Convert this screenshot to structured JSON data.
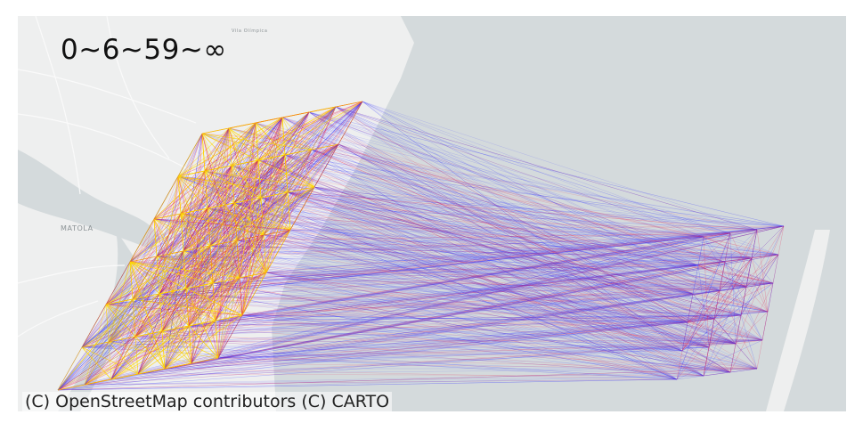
{
  "map": {
    "legend_title": "0~6~59~∞",
    "attribution": "(C) OpenStreetMap contributors (C) CARTO",
    "place_labels": [
      {
        "name": "MATOLA"
      },
      {
        "name": "Vila Olímpica"
      }
    ],
    "flow_colors": {
      "low": "#3b3bff",
      "mid": "#e8184a",
      "high": "#ffd500"
    },
    "basemap_colors": {
      "land": "#eeefef",
      "water": "#d4dadc",
      "road": "#f8f8f8"
    }
  }
}
